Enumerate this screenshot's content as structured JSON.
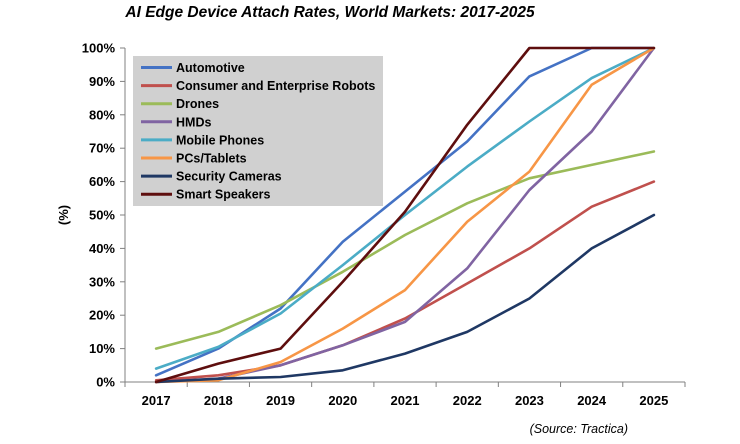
{
  "chart_data": {
    "type": "line",
    "title": "AI Edge Device Attach Rates, World Markets: 2017-2025",
    "source": "(Source: Tractica)",
    "xlabel": "",
    "ylabel": "(%)",
    "x": [
      "2017",
      "2018",
      "2019",
      "2020",
      "2021",
      "2022",
      "2023",
      "2024",
      "2025"
    ],
    "ylim": [
      0,
      100
    ],
    "yticks": [
      "0%",
      "10%",
      "20%",
      "30%",
      "40%",
      "50%",
      "60%",
      "70%",
      "80%",
      "90%",
      "100%"
    ],
    "grid": "none",
    "legend_position": "top-left",
    "series": [
      {
        "name": "Automotive",
        "color": "#4472C4",
        "values": [
          2,
          10,
          22,
          42,
          57,
          72,
          91.5,
          100,
          100
        ]
      },
      {
        "name": "Consumer and Enterprise Robots",
        "color": "#C0504D",
        "values": [
          0.5,
          2,
          5,
          11,
          19,
          29.5,
          40,
          52.5,
          60
        ]
      },
      {
        "name": "Drones",
        "color": "#9BBB59",
        "values": [
          10,
          15,
          23,
          33,
          44,
          53.5,
          61,
          65,
          69
        ]
      },
      {
        "name": "HMDs",
        "color": "#8064A2",
        "values": [
          0,
          1,
          5,
          11,
          18,
          34,
          57.5,
          75,
          100
        ]
      },
      {
        "name": "Mobile Phones",
        "color": "#4BACC6",
        "values": [
          4,
          10.5,
          20.5,
          35,
          50,
          64.5,
          78,
          91,
          100
        ]
      },
      {
        "name": "PCs/Tablets",
        "color": "#F79646",
        "values": [
          0,
          0.5,
          6,
          16,
          27.5,
          48,
          63,
          89,
          100
        ]
      },
      {
        "name": "Security Cameras",
        "color": "#1F3864",
        "values": [
          0,
          1,
          1.5,
          3.5,
          8.5,
          15,
          25,
          40,
          50
        ]
      },
      {
        "name": "Smart Speakers",
        "color": "#5E0E0E",
        "values": [
          0,
          5.5,
          10,
          30,
          51,
          77,
          100,
          100,
          100
        ]
      }
    ]
  }
}
